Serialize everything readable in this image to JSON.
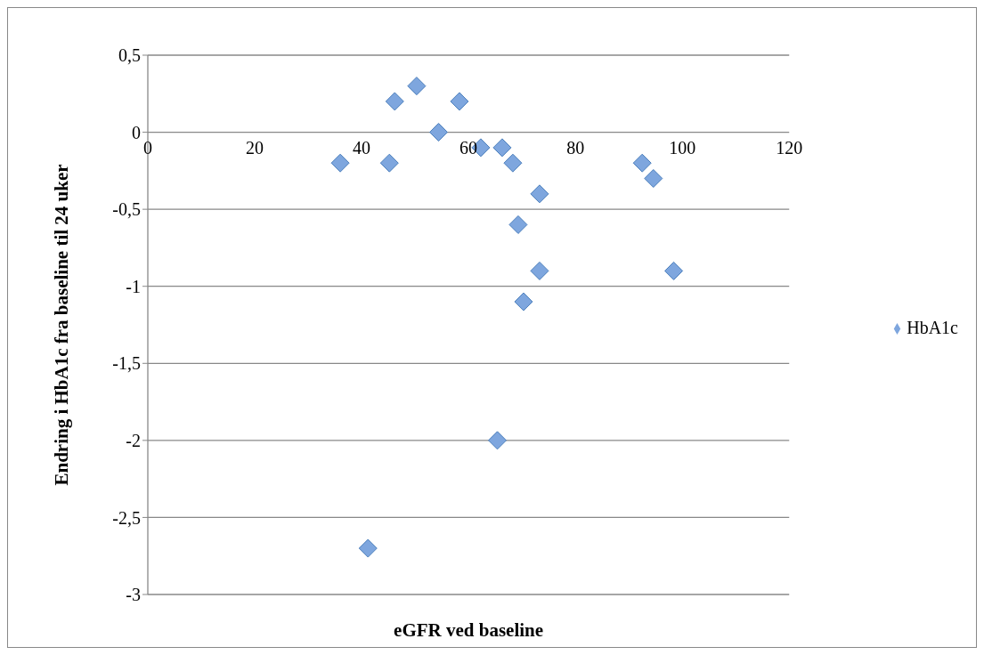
{
  "chart_data": {
    "type": "scatter",
    "xlabel": "eGFR ved baseline",
    "ylabel": "Endring i HbA1c fra baseline til 24 uker",
    "xlim": [
      0,
      120
    ],
    "xticks": [
      0,
      20,
      40,
      60,
      80,
      100,
      120
    ],
    "ylim": [
      -3,
      0.5
    ],
    "yticks": [
      {
        "value": -3,
        "label": "-3"
      },
      {
        "value": -2.5,
        "label": "-2,5"
      },
      {
        "value": -2,
        "label": "-2"
      },
      {
        "value": -1.5,
        "label": "-1,5"
      },
      {
        "value": -1,
        "label": "-1"
      },
      {
        "value": -0.5,
        "label": "-0,5"
      },
      {
        "value": 0,
        "label": "0"
      },
      {
        "value": 0.5,
        "label": "0,5"
      }
    ],
    "grid": "y",
    "legend": "right",
    "marker": "diamond",
    "series": [
      {
        "name": "HbA1c",
        "color": "#7ea6de",
        "x": [
          36,
          41.2,
          45.2,
          46.2,
          50.3,
          54.4,
          58.3,
          62.3,
          65.4,
          66.3,
          68.3,
          69.3,
          70.3,
          73.3,
          73.3,
          92.5,
          94.6,
          98.4
        ],
        "values": [
          -0.2,
          -2.7,
          -0.2,
          0.2,
          0.3,
          0,
          0.2,
          -0.1,
          -2,
          -0.1,
          -0.2,
          -0.6,
          -1.1,
          -0.4,
          -0.9,
          -0.2,
          -0.3,
          -0.9
        ]
      }
    ]
  }
}
